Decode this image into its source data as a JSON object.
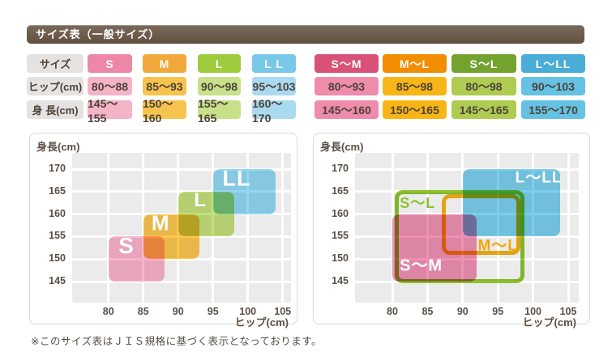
{
  "title": "サイズ表（一般サイズ）",
  "size_table": {
    "row_labels": [
      "サイズ",
      "ヒップ(cm)",
      "身 長(cm)"
    ],
    "general": {
      "columns": [
        {
          "size": "S",
          "hip": "80～88",
          "height": "145～155",
          "header_color": "#ED87A7",
          "cell_color": "#F5B3C8"
        },
        {
          "size": "M",
          "hip": "85～93",
          "height": "150～160",
          "header_color": "#F0A93A",
          "cell_color": "#F6C44E"
        },
        {
          "size": "L",
          "hip": "90～98",
          "height": "155～165",
          "header_color": "#9FCB3F",
          "cell_color": "#C9E08B"
        },
        {
          "size": "L L",
          "hip": "95～103",
          "height": "160～170",
          "header_color": "#79C8E7",
          "cell_color": "#A9DAEF"
        }
      ]
    },
    "combined": {
      "columns": [
        {
          "size": "S～M",
          "hip": "80～93",
          "height": "145～160",
          "header_color": "#D85278",
          "cell_color": "#EF8CAC"
        },
        {
          "size": "M～L",
          "hip": "85～98",
          "height": "150～165",
          "header_color": "#F28D00",
          "cell_color": "#F8B516"
        },
        {
          "size": "S～L",
          "hip": "80～98",
          "height": "145～165",
          "header_color": "#73A32E",
          "cell_color": "#AFCB52"
        },
        {
          "size": "L～LL",
          "hip": "90～103",
          "height": "155～170",
          "header_color": "#49ADD7",
          "cell_color": "#66C2E3"
        }
      ]
    }
  },
  "chart_data": [
    {
      "type": "range-box",
      "name": "general-sizes",
      "xlabel": "ヒップ(cm)",
      "ylabel": "身長(cm)",
      "x_ticks": [
        80,
        85,
        90,
        95,
        100,
        105
      ],
      "y_ticks": [
        170,
        165,
        160,
        155,
        150,
        145
      ],
      "xlim": [
        75,
        107
      ],
      "ylim": [
        140,
        174
      ],
      "grid": true,
      "regions": [
        {
          "label": "S",
          "hip": [
            80,
            88
          ],
          "height": [
            145,
            155
          ],
          "style": "fill",
          "color": "#FBB3CB",
          "label_color": "#FFFFFF",
          "label_at": [
            82.6,
            152.9
          ],
          "label_size": 28
        },
        {
          "label": "M",
          "hip": [
            85,
            93
          ],
          "height": [
            150,
            160
          ],
          "style": "fill",
          "color": "#FDC74F",
          "label_color": "#FFFFFF",
          "label_at": [
            87.5,
            158.0
          ],
          "label_size": 26
        },
        {
          "label": "L",
          "hip": [
            90,
            98
          ],
          "height": [
            155,
            165
          ],
          "style": "fill",
          "color": "#C4E07A",
          "label_color": "#FFFFFF",
          "label_at": [
            93.2,
            163.0
          ],
          "label_size": 24
        },
        {
          "label": "LL",
          "hip": [
            95,
            103
          ],
          "height": [
            160,
            170
          ],
          "style": "fill",
          "color": "#92D8F3",
          "label_color": "#FFFFFF",
          "label_at": [
            98.4,
            167.8
          ],
          "label_size": 27,
          "draw_hip": [
            95,
            104
          ]
        }
      ]
    },
    {
      "type": "range-box",
      "name": "combined-sizes",
      "xlabel": "ヒップ(cm)",
      "ylabel": "身長(cm)",
      "x_ticks": [
        80,
        85,
        90,
        95,
        100,
        105
      ],
      "y_ticks": [
        170,
        165,
        160,
        155,
        150,
        145
      ],
      "xlim": [
        75,
        107
      ],
      "ylim": [
        140,
        174
      ],
      "grid": true,
      "regions": [
        {
          "label": "S～L",
          "hip": [
            80,
            98
          ],
          "height": [
            145,
            165
          ],
          "style": "outline",
          "color": "#8CC32C",
          "label_color": "#8CC32C",
          "label_at": [
            83.6,
            162.7
          ],
          "label_size": 18,
          "draw_hip": [
            80.3,
            98.8
          ],
          "draw_height": [
            144.7,
            165.4
          ]
        },
        {
          "label": "S～M",
          "hip": [
            80,
            93
          ],
          "height": [
            145,
            160
          ],
          "style": "fill",
          "color": "#EF90B2",
          "label_color": "#FFFFFF",
          "label_at": [
            84.1,
            149.0
          ],
          "label_size": 20,
          "draw_hip": [
            80,
            92
          ]
        },
        {
          "label": "M～L",
          "hip": [
            85,
            98
          ],
          "height": [
            150,
            165
          ],
          "style": "outline",
          "color": "#F5B118",
          "label_color": "#F2A60C",
          "label_at": [
            95.0,
            153.3
          ],
          "label_size": 19,
          "draw_hip": [
            87,
            98.2
          ],
          "draw_height": [
            151,
            164.4
          ]
        },
        {
          "label": "L～LL",
          "hip": [
            90,
            103
          ],
          "height": [
            155,
            170
          ],
          "style": "fill",
          "color": "#7BCFEE",
          "label_color": "#FFFFFF",
          "label_at": [
            100.8,
            168.3
          ],
          "label_size": 19,
          "draw_hip": [
            90,
            103.9
          ]
        }
      ]
    }
  ],
  "footer": "※このサイズ表はＪＩＳ規格に基づく表示となっております。"
}
